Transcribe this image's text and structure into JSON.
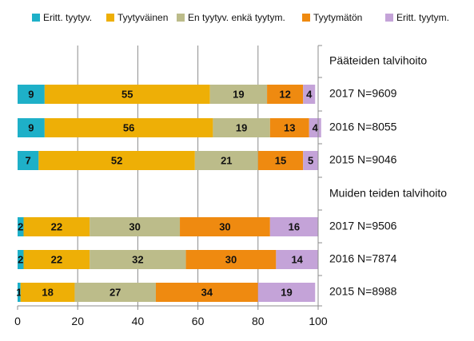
{
  "chart_data": {
    "type": "bar",
    "orientation": "horizontal",
    "stacked": true,
    "xlim": [
      0,
      100
    ],
    "xticks": [
      0,
      20,
      40,
      60,
      80,
      100
    ],
    "grid": true,
    "legend_position": "top",
    "series": [
      {
        "name": "Eritt. tyytyv.",
        "color": "#1EB0C8"
      },
      {
        "name": "Tyytyväinen",
        "color": "#EEAF06"
      },
      {
        "name": "En tyytyv. enkä tyytym.",
        "color": "#BCBC8A"
      },
      {
        "name": "Tyytymätön",
        "color": "#EF8A10"
      },
      {
        "name": "Eritt. tyytym.",
        "color": "#C4A3D8"
      }
    ],
    "groups": [
      {
        "label": "Pääteiden talvihoito",
        "rows": [
          {
            "label": "2017 N=9609",
            "values": [
              9,
              55,
              19,
              12,
              4
            ]
          },
          {
            "label": "2016 N=8055",
            "values": [
              9,
              56,
              19,
              13,
              4
            ]
          },
          {
            "label": "2015 N=9046",
            "values": [
              7,
              52,
              21,
              15,
              5
            ]
          }
        ]
      },
      {
        "label": "Muiden teiden talvihoito",
        "rows": [
          {
            "label": "2017 N=9506",
            "values": [
              2,
              22,
              30,
              30,
              16
            ]
          },
          {
            "label": "2016 N=7874",
            "values": [
              2,
              22,
              32,
              30,
              14
            ]
          },
          {
            "label": "2015 N=8988",
            "values": [
              1,
              18,
              27,
              34,
              19
            ]
          }
        ]
      }
    ]
  }
}
